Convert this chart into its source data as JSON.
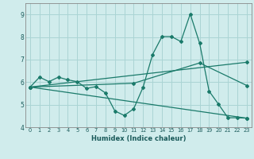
{
  "xlabel": "Humidex (Indice chaleur)",
  "bg_color": "#d0ecec",
  "grid_color": "#aad4d4",
  "line_color": "#1a7a6a",
  "line1_x": [
    0,
    1,
    2,
    3,
    4,
    5,
    6,
    7,
    8,
    9,
    10,
    11,
    12,
    13,
    14,
    15,
    16,
    17,
    18,
    19,
    20,
    21,
    22,
    23
  ],
  "line1_y": [
    5.78,
    6.22,
    6.02,
    6.22,
    6.1,
    6.02,
    5.72,
    5.8,
    5.52,
    4.72,
    4.52,
    4.82,
    5.78,
    7.22,
    8.02,
    8.02,
    7.8,
    9.02,
    7.72,
    5.6,
    5.02,
    4.42,
    4.42,
    4.4
  ],
  "line2_x": [
    0,
    23
  ],
  "line2_y": [
    5.78,
    6.88
  ],
  "line3_x": [
    0,
    23
  ],
  "line3_y": [
    5.78,
    4.4
  ],
  "line4_x": [
    0,
    11,
    18,
    23
  ],
  "line4_y": [
    5.78,
    5.95,
    6.85,
    5.85
  ],
  "ylim": [
    4.0,
    9.5
  ],
  "xlim": [
    -0.5,
    23.5
  ],
  "yticks": [
    4,
    5,
    6,
    7,
    8,
    9
  ],
  "xticks": [
    0,
    1,
    2,
    3,
    4,
    5,
    6,
    7,
    8,
    9,
    10,
    11,
    12,
    13,
    14,
    15,
    16,
    17,
    18,
    19,
    20,
    21,
    22,
    23
  ]
}
